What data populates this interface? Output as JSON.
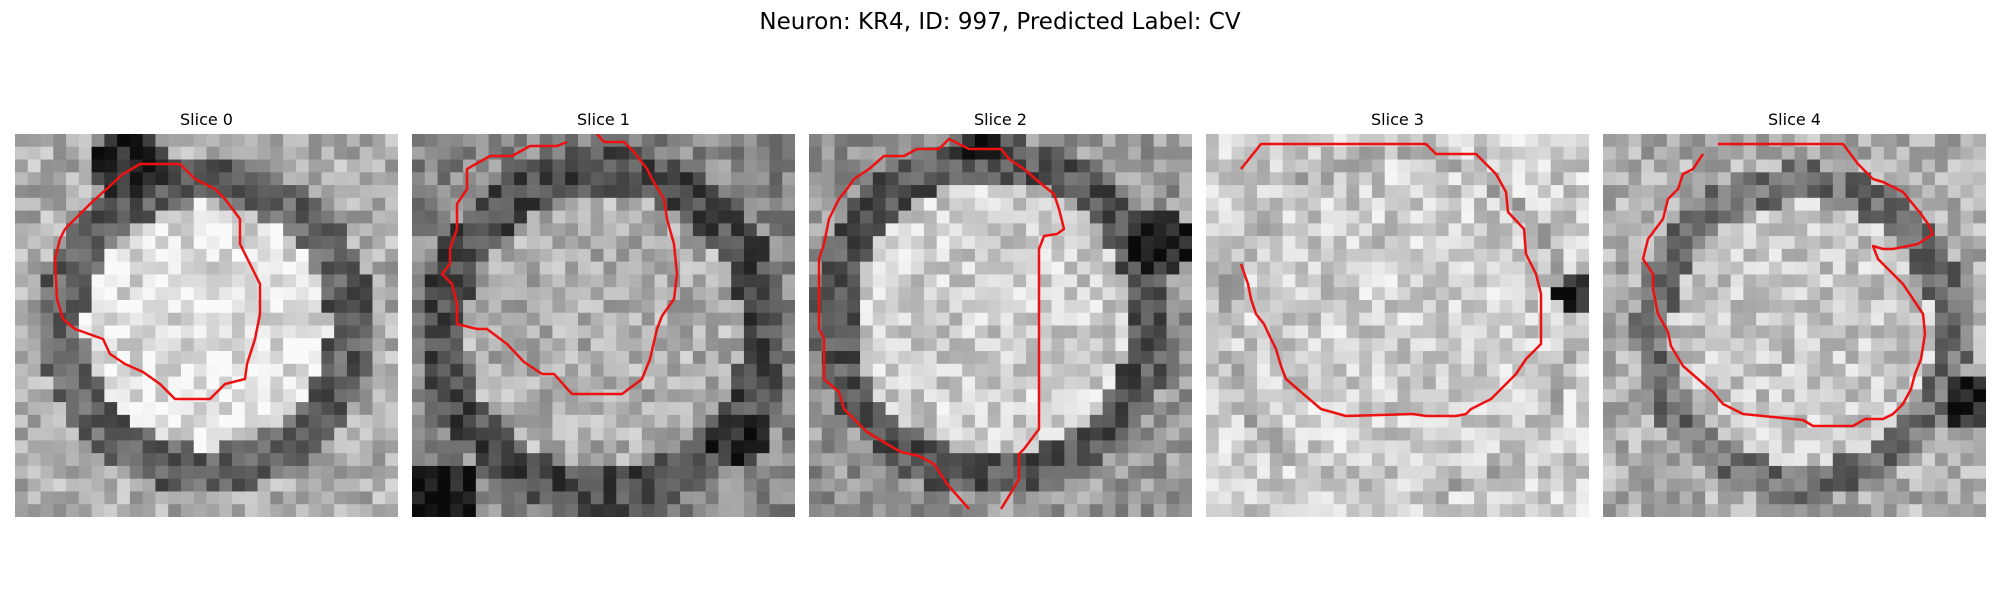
{
  "figure": {
    "title": "Neuron: KR4, ID: 997, Predicted Label: CV"
  },
  "panels": [
    {
      "title": "Slice 0"
    },
    {
      "title": "Slice 1"
    },
    {
      "title": "Slice 2"
    },
    {
      "title": "Slice 3"
    },
    {
      "title": "Slice 4"
    }
  ],
  "colors": {
    "contour": "#ee1111",
    "background": "#ffffff"
  }
}
